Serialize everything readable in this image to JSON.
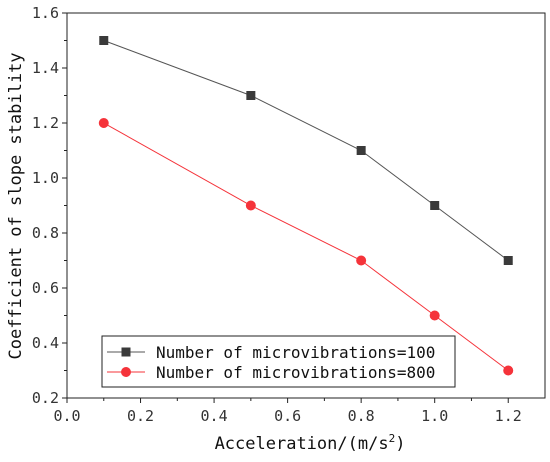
{
  "chart_data": {
    "type": "line",
    "xlabel": "Acceleration/(m/s",
    "xlabel_sup": "2",
    "xlabel_end": ")",
    "ylabel": "Coefficient of slope stability",
    "xlim": [
      0.0,
      1.3
    ],
    "ylim": [
      0.2,
      1.6
    ],
    "xticks": [
      0.0,
      0.2,
      0.4,
      0.6,
      0.8,
      1.0,
      1.2
    ],
    "xtick_labels": [
      "0.0",
      "0.2",
      "0.4",
      "0.6",
      "0.8",
      "1.0",
      "1.2"
    ],
    "yticks": [
      0.2,
      0.4,
      0.6,
      0.8,
      1.0,
      1.2,
      1.4,
      1.6
    ],
    "ytick_labels": [
      "0.2",
      "0.4",
      "0.6",
      "0.8",
      "1.0",
      "1.2",
      "1.4",
      "1.6"
    ],
    "grid": false,
    "legend_position": "bottom-left",
    "series": [
      {
        "name": "Number of microvibrations=100",
        "color": "#555555",
        "marker": "square",
        "x": [
          0.1,
          0.5,
          0.8,
          1.0,
          1.2
        ],
        "values": [
          1.5,
          1.3,
          1.1,
          0.9,
          0.7
        ]
      },
      {
        "name": "Number of microvibrations=800",
        "color": "#f5333a",
        "marker": "circle",
        "x": [
          0.1,
          0.5,
          0.8,
          1.0,
          1.2
        ],
        "values": [
          1.2,
          0.9,
          0.7,
          0.5,
          0.3
        ]
      }
    ]
  }
}
